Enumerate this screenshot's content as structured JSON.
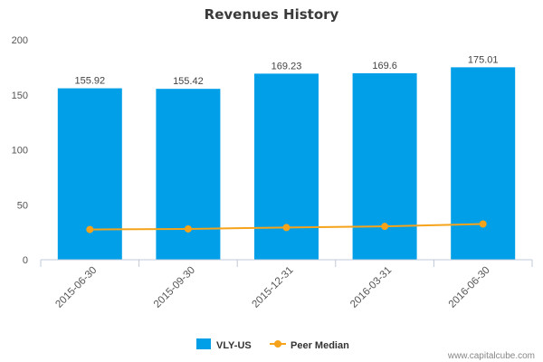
{
  "chart_data": {
    "type": "bar",
    "title": "Revenues History",
    "categories": [
      "2015-06-30",
      "2015-09-30",
      "2015-12-31",
      "2016-03-31",
      "2016-06-30"
    ],
    "series": [
      {
        "name": "VLY-US",
        "type": "bar",
        "color": "#009fe8",
        "values": [
          155.92,
          155.42,
          169.23,
          169.6,
          175.01
        ],
        "labels": [
          "155.92",
          "155.42",
          "169.23",
          "169.6",
          "175.01"
        ]
      },
      {
        "name": "Peer Median",
        "type": "line",
        "color": "#f5a31a",
        "values": [
          27.5,
          28.0,
          29.3,
          30.3,
          32.5
        ]
      }
    ],
    "yticks": [
      "0",
      "50",
      "100",
      "150",
      "200"
    ],
    "ylim": [
      0,
      200
    ],
    "xlabel": "",
    "ylabel": "",
    "legend_position": "bottom-center",
    "grid": false
  },
  "watermark": "www.capitalcube.com"
}
